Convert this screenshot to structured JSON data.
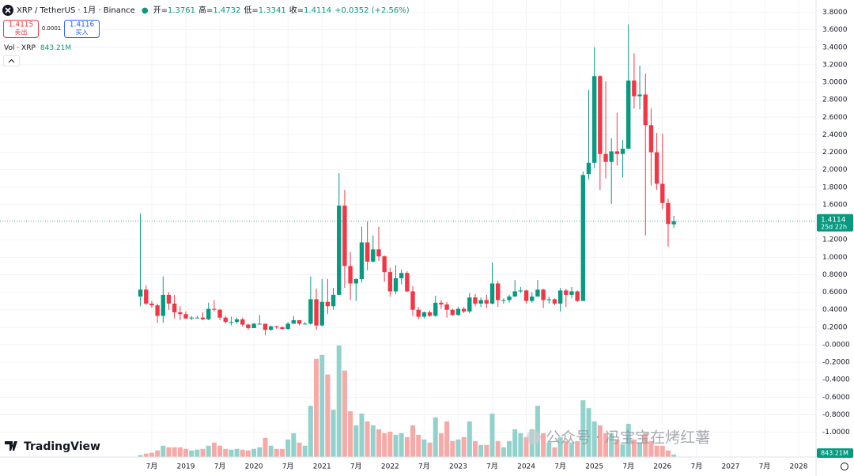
{
  "chart_data": {
    "type": "candlestick",
    "title": "XRP / TetherUS · 1月 · Binance",
    "legend": [
      {
        "label": "开=",
        "value": 1.3761
      },
      {
        "label": "高=",
        "value": 1.4732
      },
      {
        "label": "低=",
        "value": 1.3341
      },
      {
        "label": "收=",
        "value": 1.4114
      }
    ],
    "change": "+0.0352 (+2.56%)",
    "trade": {
      "sell_price": 1.4115,
      "sell_label": "卖出",
      "spread": 0.0001,
      "buy_price": 1.4116,
      "buy_label": "买入"
    },
    "volume_legend": {
      "label": "Vol · XRP",
      "value_label": "843.21M"
    },
    "last_price": 1.4114,
    "countdown": "25d 22h",
    "up_color": "#089981",
    "down_color": "#f23645",
    "volume_up_color": "#92d2cc",
    "volume_down_color": "#f7a9a7",
    "x": [
      "2018-05",
      "2018-06",
      "2018-07",
      "2018-08",
      "2018-09",
      "2018-10",
      "2018-11",
      "2018-12",
      "2019-01",
      "2019-02",
      "2019-03",
      "2019-04",
      "2019-05",
      "2019-06",
      "2019-07",
      "2019-08",
      "2019-09",
      "2019-10",
      "2019-11",
      "2019-12",
      "2020-01",
      "2020-02",
      "2020-03",
      "2020-04",
      "2020-05",
      "2020-06",
      "2020-07",
      "2020-08",
      "2020-09",
      "2020-10",
      "2020-11",
      "2020-12",
      "2021-01",
      "2021-02",
      "2021-03",
      "2021-04",
      "2021-05",
      "2021-06",
      "2021-07",
      "2021-08",
      "2021-09",
      "2021-10",
      "2021-11",
      "2021-12",
      "2022-01",
      "2022-02",
      "2022-03",
      "2022-04",
      "2022-05",
      "2022-06",
      "2022-07",
      "2022-08",
      "2022-09",
      "2022-10",
      "2022-11",
      "2022-12",
      "2023-01",
      "2023-02",
      "2023-03",
      "2023-04",
      "2023-05",
      "2023-06",
      "2023-07",
      "2023-08",
      "2023-09",
      "2023-10",
      "2023-11",
      "2023-12",
      "2024-01",
      "2024-02",
      "2024-03",
      "2024-04",
      "2024-05",
      "2024-06",
      "2024-07",
      "2024-08",
      "2024-09",
      "2024-10",
      "2024-11",
      "2024-12",
      "2025-01",
      "2025-02",
      "2025-03",
      "2025-04",
      "2025-05",
      "2025-06",
      "2025-07",
      "2025-08",
      "2025-09",
      "2025-10",
      "2025-11",
      "2025-12",
      "2026-01",
      "2026-02",
      "2026-03"
    ],
    "open": [
      0.55,
      0.63,
      0.47,
      0.45,
      0.33,
      0.57,
      0.47,
      0.37,
      0.35,
      0.3,
      0.31,
      0.31,
      0.29,
      0.41,
      0.4,
      0.31,
      0.26,
      0.26,
      0.29,
      0.23,
      0.19,
      0.24,
      0.24,
      0.17,
      0.21,
      0.2,
      0.18,
      0.24,
      0.28,
      0.24,
      0.24,
      0.52,
      0.22,
      0.49,
      0.44,
      0.57,
      1.59,
      0.9,
      0.7,
      0.75,
      1.17,
      0.95,
      1.09,
      1.01,
      0.83,
      0.61,
      0.76,
      0.82,
      0.61,
      0.4,
      0.32,
      0.37,
      0.33,
      0.48,
      0.46,
      0.4,
      0.34,
      0.41,
      0.38,
      0.54,
      0.47,
      0.51,
      0.47,
      0.7,
      0.51,
      0.51,
      0.55,
      0.61,
      0.62,
      0.5,
      0.55,
      0.63,
      0.51,
      0.52,
      0.47,
      0.62,
      0.57,
      0.61,
      0.5,
      1.95,
      2.08,
      3.07,
      2.18,
      2.09,
      2.21,
      2.18,
      2.24,
      3.02,
      2.84,
      2.86,
      2.51,
      2.2,
      1.84,
      1.62,
      1.3761
    ],
    "high": [
      1.5,
      0.68,
      0.5,
      0.47,
      0.78,
      0.6,
      0.57,
      0.44,
      0.38,
      0.33,
      0.33,
      0.37,
      0.48,
      0.51,
      0.41,
      0.33,
      0.32,
      0.31,
      0.31,
      0.24,
      0.25,
      0.34,
      0.24,
      0.22,
      0.22,
      0.21,
      0.26,
      0.33,
      0.28,
      0.26,
      0.78,
      0.64,
      0.75,
      0.75,
      0.65,
      1.96,
      1.77,
      1.06,
      0.76,
      1.35,
      1.41,
      1.25,
      1.35,
      1.02,
      0.88,
      0.91,
      0.86,
      0.84,
      0.67,
      0.43,
      0.38,
      0.39,
      0.56,
      0.51,
      0.49,
      0.41,
      0.43,
      0.43,
      0.59,
      0.58,
      0.54,
      0.57,
      0.94,
      0.73,
      0.53,
      0.57,
      0.74,
      0.66,
      0.63,
      0.6,
      0.74,
      0.64,
      0.55,
      0.53,
      0.65,
      0.64,
      0.66,
      0.62,
      1.98,
      2.91,
      3.4,
      3.08,
      3.01,
      2.36,
      2.65,
      2.34,
      3.66,
      3.33,
      3.19,
      3.1,
      2.7,
      2.42,
      2.41,
      1.67,
      1.4732
    ],
    "low": [
      0.44,
      0.45,
      0.42,
      0.25,
      0.25,
      0.4,
      0.3,
      0.28,
      0.29,
      0.28,
      0.3,
      0.28,
      0.28,
      0.38,
      0.28,
      0.24,
      0.22,
      0.24,
      0.21,
      0.17,
      0.19,
      0.23,
      0.11,
      0.16,
      0.18,
      0.17,
      0.17,
      0.24,
      0.22,
      0.23,
      0.23,
      0.17,
      0.21,
      0.35,
      0.4,
      0.57,
      0.65,
      0.51,
      0.5,
      0.71,
      0.85,
      0.94,
      0.96,
      0.72,
      0.55,
      0.58,
      0.69,
      0.6,
      0.33,
      0.29,
      0.3,
      0.32,
      0.32,
      0.41,
      0.31,
      0.33,
      0.33,
      0.36,
      0.36,
      0.44,
      0.43,
      0.42,
      0.46,
      0.43,
      0.47,
      0.48,
      0.55,
      0.59,
      0.47,
      0.48,
      0.55,
      0.42,
      0.47,
      0.45,
      0.38,
      0.43,
      0.53,
      0.49,
      0.5,
      1.89,
      2.02,
      1.77,
      1.9,
      1.61,
      2.05,
      1.91,
      2.24,
      2.7,
      2.69,
      1.25,
      1.82,
      1.77,
      1.55,
      1.12,
      1.3341
    ],
    "close": [
      0.63,
      0.47,
      0.45,
      0.33,
      0.57,
      0.47,
      0.37,
      0.35,
      0.3,
      0.31,
      0.31,
      0.29,
      0.41,
      0.4,
      0.31,
      0.26,
      0.26,
      0.29,
      0.23,
      0.19,
      0.24,
      0.24,
      0.17,
      0.21,
      0.2,
      0.18,
      0.24,
      0.28,
      0.24,
      0.24,
      0.52,
      0.22,
      0.49,
      0.44,
      0.57,
      1.59,
      0.9,
      0.7,
      0.75,
      1.17,
      0.95,
      1.09,
      1.01,
      0.83,
      0.61,
      0.76,
      0.82,
      0.61,
      0.4,
      0.32,
      0.37,
      0.33,
      0.48,
      0.46,
      0.4,
      0.34,
      0.41,
      0.38,
      0.54,
      0.47,
      0.51,
      0.47,
      0.7,
      0.51,
      0.51,
      0.55,
      0.61,
      0.62,
      0.5,
      0.55,
      0.63,
      0.51,
      0.52,
      0.47,
      0.62,
      0.57,
      0.61,
      0.5,
      1.94,
      2.08,
      3.07,
      2.18,
      2.09,
      2.21,
      2.18,
      2.24,
      3.02,
      2.84,
      2.86,
      2.51,
      2.2,
      1.84,
      1.62,
      1.38,
      1.4114
    ],
    "volume": [
      600,
      1200,
      1500,
      2400,
      4200,
      3600,
      3600,
      3600,
      3000,
      2400,
      2700,
      3000,
      4200,
      5400,
      4200,
      3000,
      2700,
      3000,
      2700,
      2400,
      3000,
      3600,
      7200,
      4200,
      3000,
      3000,
      6600,
      9000,
      5400,
      4200,
      19500,
      37500,
      39000,
      31500,
      18000,
      42600,
      33000,
      17400,
      12000,
      16500,
      13500,
      12000,
      10500,
      9000,
      9600,
      8400,
      9000,
      7500,
      12000,
      8400,
      6600,
      5400,
      15000,
      9000,
      13500,
      6000,
      6600,
      7500,
      13500,
      6000,
      4500,
      4500,
      16500,
      6000,
      3600,
      6000,
      10500,
      9000,
      7500,
      10500,
      19500,
      9000,
      5400,
      3600,
      7500,
      6000,
      5400,
      6000,
      21600,
      18600,
      13500,
      12000,
      9000,
      9000,
      6600,
      4800,
      12600,
      6600,
      5400,
      9000,
      6000,
      4200,
      4200,
      2400,
      843.21
    ],
    "volume_value_label": "843.21M",
    "volume_lim": [
      0,
      43000
    ],
    "ylim": [
      -1.28,
      3.94
    ],
    "yticks": [
      {
        "value": 3.8,
        "label": "3.8000"
      },
      {
        "value": 3.6,
        "label": "3.6000"
      },
      {
        "value": 3.4,
        "label": "3.4000"
      },
      {
        "value": 3.2,
        "label": "3.2000"
      },
      {
        "value": 3.0,
        "label": "3.0000"
      },
      {
        "value": 2.8,
        "label": "2.8000"
      },
      {
        "value": 2.6,
        "label": "2.6000"
      },
      {
        "value": 2.4,
        "label": "2.4000"
      },
      {
        "value": 2.2,
        "label": "2.2000"
      },
      {
        "value": 2.0,
        "label": "2.0000"
      },
      {
        "value": 1.8,
        "label": "1.8000"
      },
      {
        "value": 1.6,
        "label": "1.6000"
      },
      {
        "value": 1.2,
        "label": "1.2000"
      },
      {
        "value": 1.0,
        "label": "1.0000"
      },
      {
        "value": 0.8,
        "label": "0.8000"
      },
      {
        "value": 0.6,
        "label": "0.6000"
      },
      {
        "value": 0.4,
        "label": "0.4000"
      },
      {
        "value": 0.2,
        "label": "0.2000"
      },
      {
        "value": 0,
        "label": "-0.0000"
      },
      {
        "value": -0.2,
        "label": "-0.2000"
      },
      {
        "value": -0.4,
        "label": "-0.4000"
      },
      {
        "value": -0.6,
        "label": "-0.6000"
      },
      {
        "value": -0.8,
        "label": "-0.8000"
      },
      {
        "value": -1.0,
        "label": "-1.0000"
      }
    ],
    "xticks": [
      {
        "value": "2018-07",
        "label": "7月"
      },
      {
        "value": "2019-01",
        "label": "2019"
      },
      {
        "value": "2019-07",
        "label": "7月"
      },
      {
        "value": "2020-01",
        "label": "2020"
      },
      {
        "value": "2020-07",
        "label": "7月"
      },
      {
        "value": "2021-01",
        "label": "2021"
      },
      {
        "value": "2021-07",
        "label": "7月"
      },
      {
        "value": "2022-01",
        "label": "2022"
      },
      {
        "value": "2022-07",
        "label": "7月"
      },
      {
        "value": "2023-01",
        "label": "2023"
      },
      {
        "value": "2023-07",
        "label": "7月"
      },
      {
        "value": "2024-01",
        "label": "2024"
      },
      {
        "value": "2024-07",
        "label": "7月"
      },
      {
        "value": "2025-01",
        "label": "2025"
      },
      {
        "value": "2025-07",
        "label": "7月"
      },
      {
        "value": "2026-01",
        "label": "2026"
      },
      {
        "value": "2026-07",
        "label": "7月"
      },
      {
        "value": "2027-01",
        "label": "2027"
      },
      {
        "value": "2027-07",
        "label": "7月"
      },
      {
        "value": "2028-01",
        "label": "2028"
      }
    ],
    "grid": true
  },
  "brand": "TradingView",
  "watermark": "公众号 · 冯宝宝在烤红薯"
}
